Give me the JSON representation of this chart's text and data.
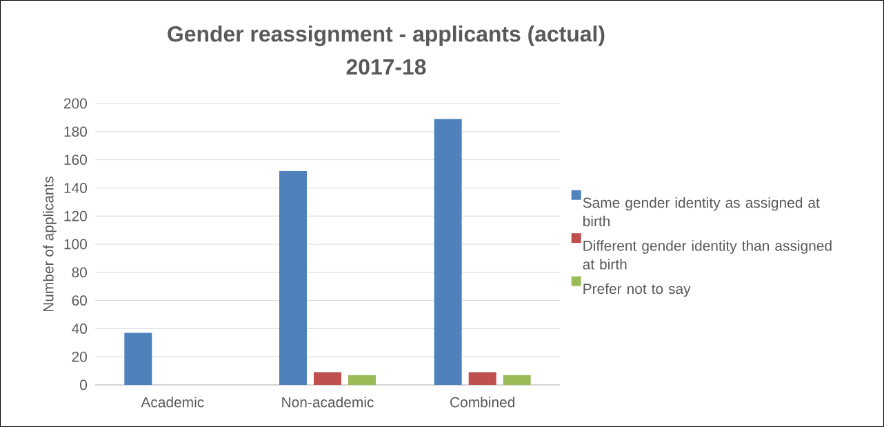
{
  "chart_data": {
    "type": "bar",
    "title": "Gender reassignment - applicants (actual)",
    "subtitle": "2017-18",
    "ylabel": "Number of applicants",
    "categories": [
      "Academic",
      "Non-academic",
      "Combined"
    ],
    "series": [
      {
        "name": "Same gender identity as assigned at birth",
        "color": "#4f81bd",
        "values": [
          37,
          152,
          189
        ]
      },
      {
        "name": "Different gender identity than assigned at birth",
        "color": "#c0504d",
        "values": [
          0,
          9,
          9
        ]
      },
      {
        "name": "Prefer not to say",
        "color": "#9bbb59",
        "values": [
          0,
          7,
          7
        ]
      }
    ],
    "ylim": [
      0,
      200
    ],
    "yticks": [
      0,
      20,
      40,
      60,
      80,
      100,
      120,
      140,
      160,
      180,
      200
    ],
    "grid": "y",
    "legend": "right"
  }
}
